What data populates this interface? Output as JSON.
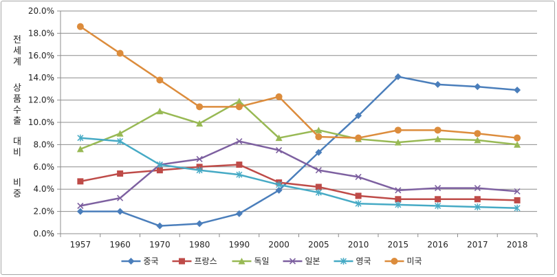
{
  "chart_data": {
    "type": "line",
    "title": "",
    "xlabel": "",
    "ylabel": [
      "전 세 계",
      "상품수출",
      "대 비",
      "비 중"
    ],
    "x": [
      "1957",
      "1960",
      "1970",
      "1980",
      "1990",
      "2000",
      "2005",
      "2010",
      "2015",
      "2016",
      "2017",
      "2018"
    ],
    "ylim": [
      0,
      20
    ],
    "ytick_step": 2,
    "ytick_labels": [
      "0.0%",
      "2.0%",
      "4.0%",
      "6.0%",
      "8.0%",
      "10.0%",
      "12.0%",
      "14.0%",
      "16.0%",
      "18.0%",
      "20.0%"
    ],
    "grid": true,
    "legend_position": "bottom",
    "series": [
      {
        "name": "중국",
        "color": "#4a7ebb",
        "marker": "diamond",
        "values": [
          2.0,
          2.0,
          0.7,
          0.9,
          1.8,
          3.9,
          7.3,
          10.6,
          14.1,
          13.4,
          13.2,
          12.9
        ]
      },
      {
        "name": "프랑스",
        "color": "#be4b48",
        "marker": "square",
        "values": [
          4.7,
          5.4,
          5.7,
          6.0,
          6.2,
          4.6,
          4.2,
          3.4,
          3.1,
          3.1,
          3.1,
          3.0
        ]
      },
      {
        "name": "독일",
        "color": "#98b954",
        "marker": "triangle",
        "values": [
          7.6,
          9.0,
          11.0,
          9.9,
          11.9,
          8.6,
          9.3,
          8.5,
          8.2,
          8.5,
          8.4,
          8.0
        ]
      },
      {
        "name": "일본",
        "color": "#7d60a0",
        "marker": "x",
        "values": [
          2.5,
          3.2,
          6.2,
          6.7,
          8.3,
          7.5,
          5.7,
          5.1,
          3.9,
          4.1,
          4.1,
          3.8
        ]
      },
      {
        "name": "영국",
        "color": "#46aac5",
        "marker": "star",
        "values": [
          8.6,
          8.3,
          6.2,
          5.7,
          5.3,
          4.4,
          3.7,
          2.7,
          2.6,
          2.5,
          2.4,
          2.3
        ]
      },
      {
        "name": "미국",
        "color": "#dc8c3c",
        "marker": "circle",
        "values": [
          18.6,
          16.2,
          13.8,
          11.4,
          11.4,
          12.3,
          8.7,
          8.6,
          9.3,
          9.3,
          9.0,
          8.6
        ]
      }
    ]
  }
}
